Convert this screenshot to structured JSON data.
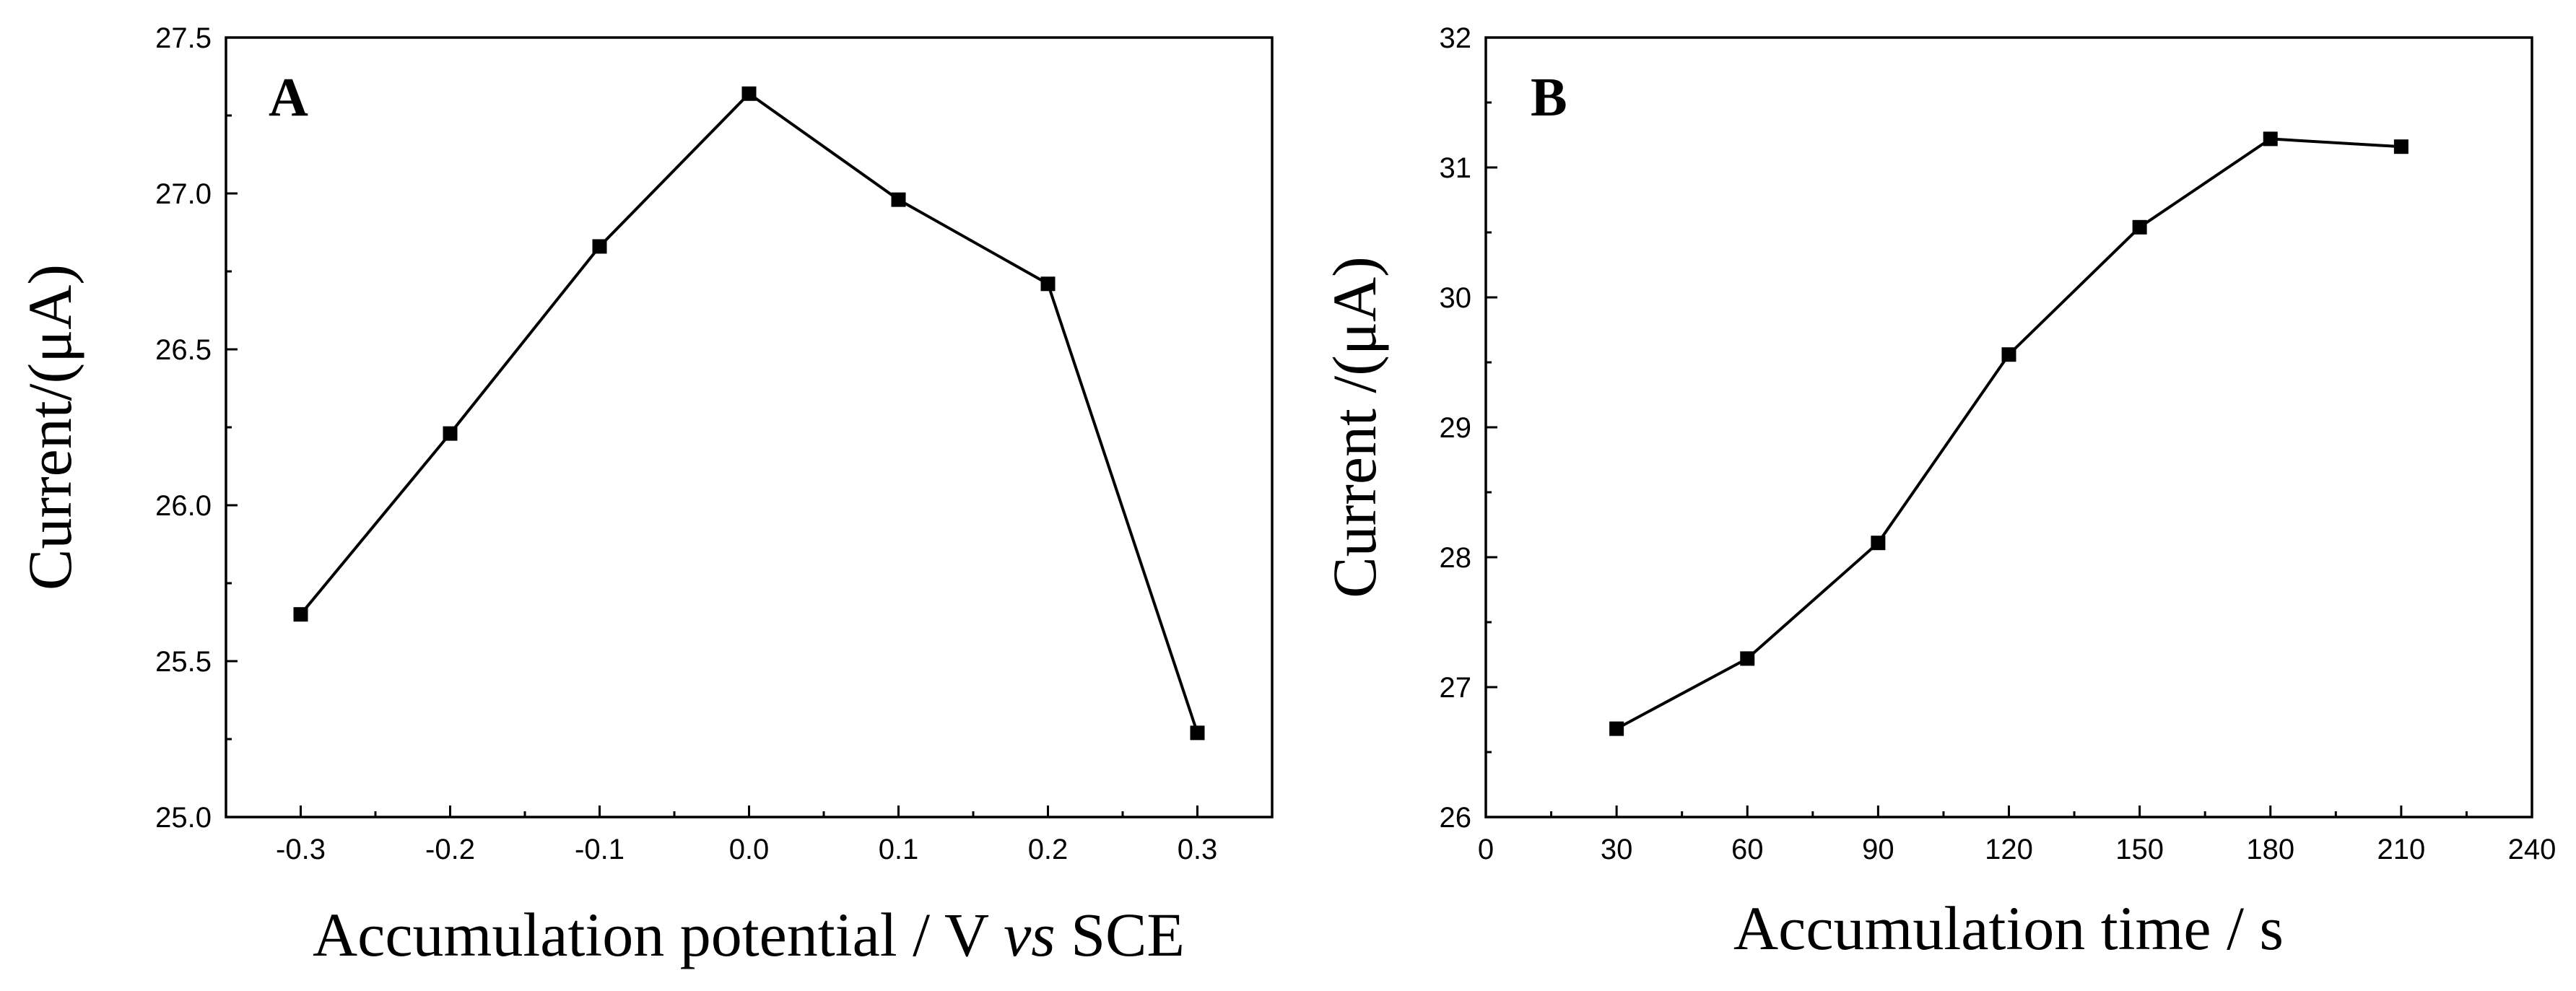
{
  "chart_data": [
    {
      "type": "line",
      "panel_label": "A",
      "x": [
        -0.3,
        -0.2,
        -0.1,
        0.0,
        0.1,
        0.2,
        0.3
      ],
      "series": [
        {
          "name": "Current",
          "values": [
            25.65,
            26.23,
            26.83,
            27.32,
            26.98,
            26.71,
            25.27
          ]
        }
      ],
      "xlabel": "Accumulation potential / V vs SCE",
      "xlabel_parts": {
        "before": "Accumulation potential / V ",
        "italic": "vs",
        "after": " SCE"
      },
      "ylabel": "Current/(μA)",
      "xlim": [
        -0.35,
        0.35
      ],
      "ylim": [
        25.0,
        27.5
      ],
      "xticks": [
        -0.3,
        -0.2,
        -0.1,
        0.0,
        0.1,
        0.2,
        0.3
      ],
      "xtick_labels": [
        "-0.3",
        "-0.2",
        "-0.1",
        "0.0",
        "0.1",
        "0.2",
        "0.3"
      ],
      "yticks": [
        25.0,
        25.5,
        26.0,
        26.5,
        27.0,
        27.5
      ],
      "ytick_labels": [
        "25.0",
        "25.5",
        "26.0",
        "26.5",
        "27.0",
        "27.5"
      ],
      "grid": false,
      "marker": "filled-square",
      "color": "#000000"
    },
    {
      "type": "line",
      "panel_label": "B",
      "x": [
        30,
        60,
        90,
        120,
        150,
        180,
        210
      ],
      "series": [
        {
          "name": "Current",
          "values": [
            26.68,
            27.22,
            28.11,
            29.56,
            30.54,
            31.22,
            31.16
          ]
        }
      ],
      "xlabel": "Accumulation time / s",
      "ylabel": "Current /(μA)",
      "xlim": [
        0,
        240
      ],
      "ylim": [
        26,
        32
      ],
      "xticks": [
        0,
        30,
        60,
        90,
        120,
        150,
        180,
        210,
        240
      ],
      "xtick_labels": [
        "0",
        "30",
        "60",
        "90",
        "120",
        "150",
        "180",
        "210",
        "240"
      ],
      "yticks": [
        26,
        27,
        28,
        29,
        30,
        31,
        32
      ],
      "ytick_labels": [
        "26",
        "27",
        "28",
        "29",
        "30",
        "31",
        "32"
      ],
      "grid": false,
      "marker": "filled-square",
      "color": "#000000"
    }
  ]
}
